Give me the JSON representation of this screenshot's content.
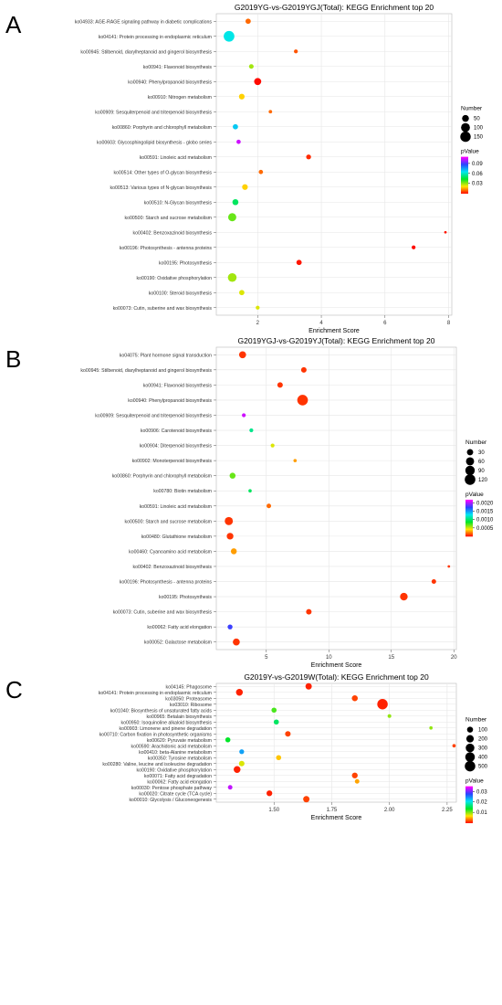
{
  "figure": {
    "panels": [
      {
        "letter": "A",
        "title": "G2019YG-vs-G2019YGJ(Total): KEGG Enrichment top 20",
        "xlabel": "Enrichment Score",
        "size_legend": {
          "title": "Number",
          "labels": [
            "50",
            "100",
            "150"
          ]
        },
        "color_legend": {
          "title": "pValue",
          "labels": [
            "0.09",
            "0.06",
            "0.03"
          ]
        }
      },
      {
        "letter": "B",
        "title": "G2019YGJ-vs-G2019YJ(Total): KEGG Enrichment top 20",
        "xlabel": "Enrichment Score",
        "size_legend": {
          "title": "Number",
          "labels": [
            "30",
            "60",
            "90",
            "120"
          ]
        },
        "color_legend": {
          "title": "pValue",
          "labels": [
            "0.0020",
            "0.0015",
            "0.0010",
            "0.0005"
          ]
        }
      },
      {
        "letter": "C",
        "title": "G2019Y-vs-G2019W(Total): KEGG Enrichment top 20",
        "xlabel": "Enrichment Score",
        "size_legend": {
          "title": "Number",
          "labels": [
            "100",
            "200",
            "300",
            "400",
            "500"
          ]
        },
        "color_legend": {
          "title": "pValue",
          "labels": [
            "0.03",
            "0.02",
            "0.01"
          ]
        }
      }
    ]
  },
  "chart_data": [
    {
      "type": "scatter",
      "title": "G2019YG-vs-G2019YGJ(Total): KEGG Enrichment top 20",
      "xlabel": "Enrichment Score",
      "xlim": [
        0.7,
        8.1
      ],
      "xticks": [
        2,
        4,
        6,
        8
      ],
      "size_range": [
        8,
        170
      ],
      "size_legend_values": [
        50,
        100,
        150
      ],
      "pvalue_range": [
        0.0,
        0.11
      ],
      "pvalue_legend_values": [
        0.09,
        0.06,
        0.03
      ],
      "grid": true,
      "legend_position": "right",
      "terms": [
        "ko04933: AGE-RAGE signaling pathway in diabetic complications",
        "ko04141: Protein processing in endoplasmic reticulum",
        "ko00945: Stilbenoid, diarylheptanoid and gingerol biosynthesis",
        "ko00941: Flavonoid biosynthesis",
        "ko00940: Phenylpropanoid biosynthesis",
        "ko00910: Nitrogen metabolism",
        "ko00909: Sesquiterpenoid and triterpenoid biosynthesis",
        "ko00860: Porphyrin and chlorophyll metabolism",
        "ko00603: Glycosphingolipid biosynthesis - globo series",
        "ko00591: Linoleic acid metabolism",
        "ko00514: Other types of O-glycan biosynthesis",
        "ko00513: Various types of N-glycan biosynthesis",
        "ko00510: N-Glycan biosynthesis",
        "ko00500: Starch and sucrose metabolism",
        "ko00402: Benzoxazinoid biosynthesis",
        "ko00196: Photosynthesis - antenna proteins",
        "ko00195: Photosynthesis",
        "ko00190: Oxidative phosphorylation",
        "ko00100: Steroid biosynthesis",
        "ko00073: Cutin, suberine and wax biosynthesis"
      ],
      "x": [
        1.7,
        1.1,
        3.2,
        1.8,
        2.0,
        1.5,
        2.4,
        1.3,
        1.4,
        3.6,
        2.1,
        1.6,
        1.3,
        1.2,
        7.9,
        6.9,
        3.3,
        1.2,
        1.5,
        2.0
      ],
      "number": [
        25,
        160,
        12,
        18,
        55,
        30,
        10,
        25,
        15,
        20,
        15,
        30,
        35,
        80,
        5,
        12,
        25,
        95,
        25,
        12
      ],
      "pvalue": [
        0.01,
        0.065,
        0.008,
        0.03,
        0.001,
        0.02,
        0.01,
        0.07,
        0.105,
        0.004,
        0.01,
        0.02,
        0.05,
        0.035,
        0.002,
        0.001,
        0.002,
        0.03,
        0.025,
        0.025
      ]
    },
    {
      "type": "scatter",
      "title": "G2019YGJ-vs-G2019YJ(Total): KEGG Enrichment top 20",
      "xlabel": "Enrichment Score",
      "xlim": [
        1.0,
        20.2
      ],
      "xticks": [
        5,
        10,
        15,
        20
      ],
      "size_range": [
        5,
        130
      ],
      "size_legend_values": [
        30,
        60,
        90,
        120
      ],
      "pvalue_range": [
        0.0,
        0.0022
      ],
      "pvalue_legend_values": [
        0.002,
        0.0015,
        0.001,
        0.0005
      ],
      "grid": true,
      "legend_position": "right",
      "terms": [
        "ko04075: Plant hormone signal transduction",
        "ko00945: Stilbenoid, diarylheptanoid and gingerol biosynthesis",
        "ko00941: Flavonoid biosynthesis",
        "ko00940: Phenylpropanoid biosynthesis",
        "ko00909: Sesquiterpenoid and triterpenoid biosynthesis",
        "ko00906: Carotenoid biosynthesis",
        "ko00904: Diterpenoid biosynthesis",
        "ko00902: Monoterpenoid biosynthesis",
        "ko00860: Porphyrin and chlorophyll metabolism",
        "ko00780: Biotin metabolism",
        "ko00591: Linoleic acid metabolism",
        "ko00500: Starch and sucrose metabolism",
        "ko00480: Glutathione metabolism",
        "ko00460: Cyanoamino acid metabolism",
        "ko00402: Benzoxazinoid biosynthesis",
        "ko00196: Photosynthesis - antenna proteins",
        "ko00195: Photosynthesis",
        "ko00073: Cutin, suberine and wax biosynthesis",
        "ko00062: Fatty acid elongation",
        "ko00052: Galactose metabolism"
      ],
      "x": [
        3.1,
        8.0,
        6.1,
        7.9,
        3.2,
        3.8,
        5.5,
        7.3,
        2.3,
        3.7,
        5.2,
        2.0,
        2.1,
        2.4,
        19.6,
        18.4,
        16.0,
        8.4,
        2.1,
        2.6
      ],
      "number": [
        40,
        20,
        20,
        120,
        8,
        8,
        8,
        6,
        25,
        6,
        12,
        60,
        35,
        25,
        4,
        12,
        50,
        20,
        15,
        40
      ],
      "pvalue": [
        0.0001,
        0.0001,
        0.0001,
        0.0001,
        0.0021,
        0.0011,
        0.0005,
        0.0003,
        0.0007,
        0.001,
        0.0002,
        0.0001,
        0.0001,
        0.0003,
        0.0001,
        0.0001,
        0.0001,
        0.0001,
        0.0018,
        0.0001
      ]
    },
    {
      "type": "scatter",
      "title": "G2019Y-vs-G2019W(Total): KEGG Enrichment top 20",
      "xlabel": "Enrichment Score",
      "xlim": [
        1.25,
        2.29
      ],
      "xticks": [
        1.5,
        1.75,
        2.0,
        2.25
      ],
      "xtick_labels": [
        "1.50",
        "1.75",
        "2.00",
        "2.25"
      ],
      "size_range": [
        10,
        560
      ],
      "size_legend_values": [
        100,
        200,
        300,
        400,
        500
      ],
      "pvalue_range": [
        0.0,
        0.035
      ],
      "pvalue_legend_values": [
        0.03,
        0.02,
        0.01
      ],
      "grid": true,
      "legend_position": "right",
      "terms": [
        "ko04145: Phagosome",
        "ko04141: Protein processing in endoplasmic reticulum",
        "ko03050: Proteasome",
        "ko03010: Ribosome",
        "ko01040: Biosynthesis of unsaturated fatty acids",
        "ko00965: Betalain biosynthesis",
        "ko00950: Isoquinoline alkaloid biosynthesis",
        "ko00903: Limonene and pinene degradation",
        "ko00710: Carbon fixation in photosynthetic organisms",
        "ko00620: Pyruvate metabolism",
        "ko00590: Arachidonic acid metabolism",
        "ko00410: beta-Alanine metabolism",
        "ko00350: Tyrosine metabolism",
        "ko00280: Valine, leucine and isoleucine degradation",
        "ko00190: Oxidative phosphorylation",
        "ko00071: Fatty acid degradation",
        "ko00062: Fatty acid elongation",
        "ko00030: Pentose phosphate pathway",
        "ko00020: Citrate cycle (TCA cycle)",
        "ko00010: Glycolysis / Gluconeogenesis"
      ],
      "x": [
        1.65,
        1.35,
        1.85,
        1.97,
        1.5,
        2.0,
        1.51,
        2.18,
        1.56,
        1.3,
        2.28,
        1.36,
        1.52,
        1.36,
        1.34,
        1.85,
        1.86,
        1.31,
        1.48,
        1.64
      ],
      "number": [
        120,
        150,
        100,
        500,
        60,
        20,
        60,
        15,
        80,
        60,
        15,
        50,
        60,
        80,
        150,
        90,
        40,
        40,
        90,
        120
      ],
      "pvalue": [
        0.001,
        0.001,
        0.002,
        0.001,
        0.012,
        0.01,
        0.016,
        0.01,
        0.002,
        0.014,
        0.002,
        0.024,
        0.006,
        0.008,
        0.001,
        0.002,
        0.005,
        0.033,
        0.001,
        0.002
      ]
    }
  ]
}
